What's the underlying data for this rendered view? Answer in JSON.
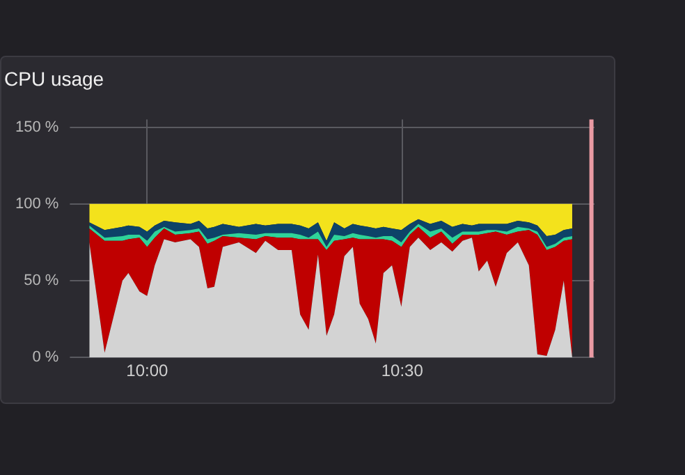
{
  "chart_data": {
    "type": "area",
    "title": "CPU usage",
    "stacked": true,
    "marker": "none",
    "grid": true,
    "legend": false,
    "x": [
      9.8867,
      9.9167,
      9.9517,
      9.9633,
      9.985,
      10,
      10.015,
      10.0333,
      10.055,
      10.085,
      10.1017,
      10.1183,
      10.1317,
      10.1483,
      10.18,
      10.2133,
      10.2317,
      10.2567,
      10.2833,
      10.3,
      10.3167,
      10.335,
      10.3517,
      10.3667,
      10.3867,
      10.4033,
      10.4167,
      10.4333,
      10.4483,
      10.4633,
      10.48,
      10.4983,
      10.515,
      10.5317,
      10.555,
      10.5767,
      10.5983,
      10.6183,
      10.6367,
      10.65,
      10.6667,
      10.6833,
      10.705,
      10.7267,
      10.7483,
      10.765,
      10.7833,
      10.8,
      10.8167,
      10.8333
    ],
    "series": [
      {
        "color": "#d3d3d3",
        "values": [
          75,
          3,
          50,
          55,
          43,
          40,
          60,
          77,
          75,
          77,
          72,
          45,
          46,
          72,
          75,
          68,
          76,
          70,
          70,
          28,
          18,
          67,
          14,
          28,
          66,
          72,
          35,
          25,
          9,
          55,
          60,
          33,
          72,
          78,
          70,
          75,
          69,
          76,
          78,
          56,
          63,
          46,
          68,
          75,
          60,
          2,
          1,
          18,
          50,
          0
        ]
      },
      {
        "color": "#bf0000",
        "values": [
          9,
          73,
          26,
          22,
          35,
          32,
          18,
          7,
          5,
          4,
          10,
          29,
          30,
          7,
          3,
          9,
          3,
          8,
          8,
          49,
          59,
          10,
          56,
          48,
          11,
          6,
          42,
          52,
          68,
          22,
          16,
          39,
          8,
          7,
          8,
          7,
          5,
          4,
          2,
          24,
          18,
          36,
          12,
          7,
          23,
          78,
          69,
          54,
          26,
          77
        ]
      },
      {
        "color": "#2ed39a",
        "values": [
          2,
          2,
          3,
          3,
          2,
          4,
          4,
          1,
          2,
          2,
          2,
          3,
          2,
          1,
          3,
          3,
          2,
          3,
          3,
          3,
          1,
          5,
          2,
          4,
          2,
          3,
          3,
          2,
          1,
          2,
          3,
          3,
          2,
          2,
          4,
          2,
          4,
          2,
          2,
          2,
          2,
          1,
          2,
          3,
          1,
          2,
          2,
          2,
          2,
          2
        ]
      },
      {
        "color": "#0d4368",
        "values": [
          2,
          5,
          6,
          6,
          5,
          6,
          4,
          4,
          6,
          4,
          5,
          7,
          7,
          7,
          4,
          7,
          5,
          6,
          6,
          6,
          6,
          6,
          4,
          8,
          5,
          6,
          6,
          6,
          6,
          6,
          5,
          8,
          5,
          3,
          5,
          5,
          7,
          5,
          4,
          5,
          4,
          4,
          5,
          4,
          4,
          4,
          7,
          6,
          5,
          5
        ]
      },
      {
        "color": "#f3e21c",
        "values": [
          12,
          17,
          15,
          14,
          15,
          18,
          14,
          11,
          12,
          13,
          11,
          16,
          15,
          13,
          15,
          13,
          14,
          13,
          13,
          14,
          16,
          12,
          24,
          12,
          16,
          13,
          14,
          15,
          16,
          15,
          16,
          17,
          13,
          10,
          13,
          11,
          15,
          13,
          14,
          13,
          13,
          13,
          13,
          11,
          12,
          14,
          21,
          20,
          17,
          16
        ]
      }
    ],
    "xlim": [
      9.865,
      10.877
    ],
    "xticks": [
      {
        "value": 10,
        "label": "10:00"
      },
      {
        "value": 10.5,
        "label": "10:30"
      }
    ],
    "ylim": [
      0,
      155
    ],
    "yticks": [
      {
        "value": 0,
        "label": "0 %"
      },
      {
        "value": 50,
        "label": "50 %"
      },
      {
        "value": 100,
        "label": "100 %"
      },
      {
        "value": 150,
        "label": "150 %"
      }
    ],
    "ref_lines": [
      {
        "axis": "x",
        "value": 10.871,
        "color": "#e99aa3"
      }
    ]
  }
}
